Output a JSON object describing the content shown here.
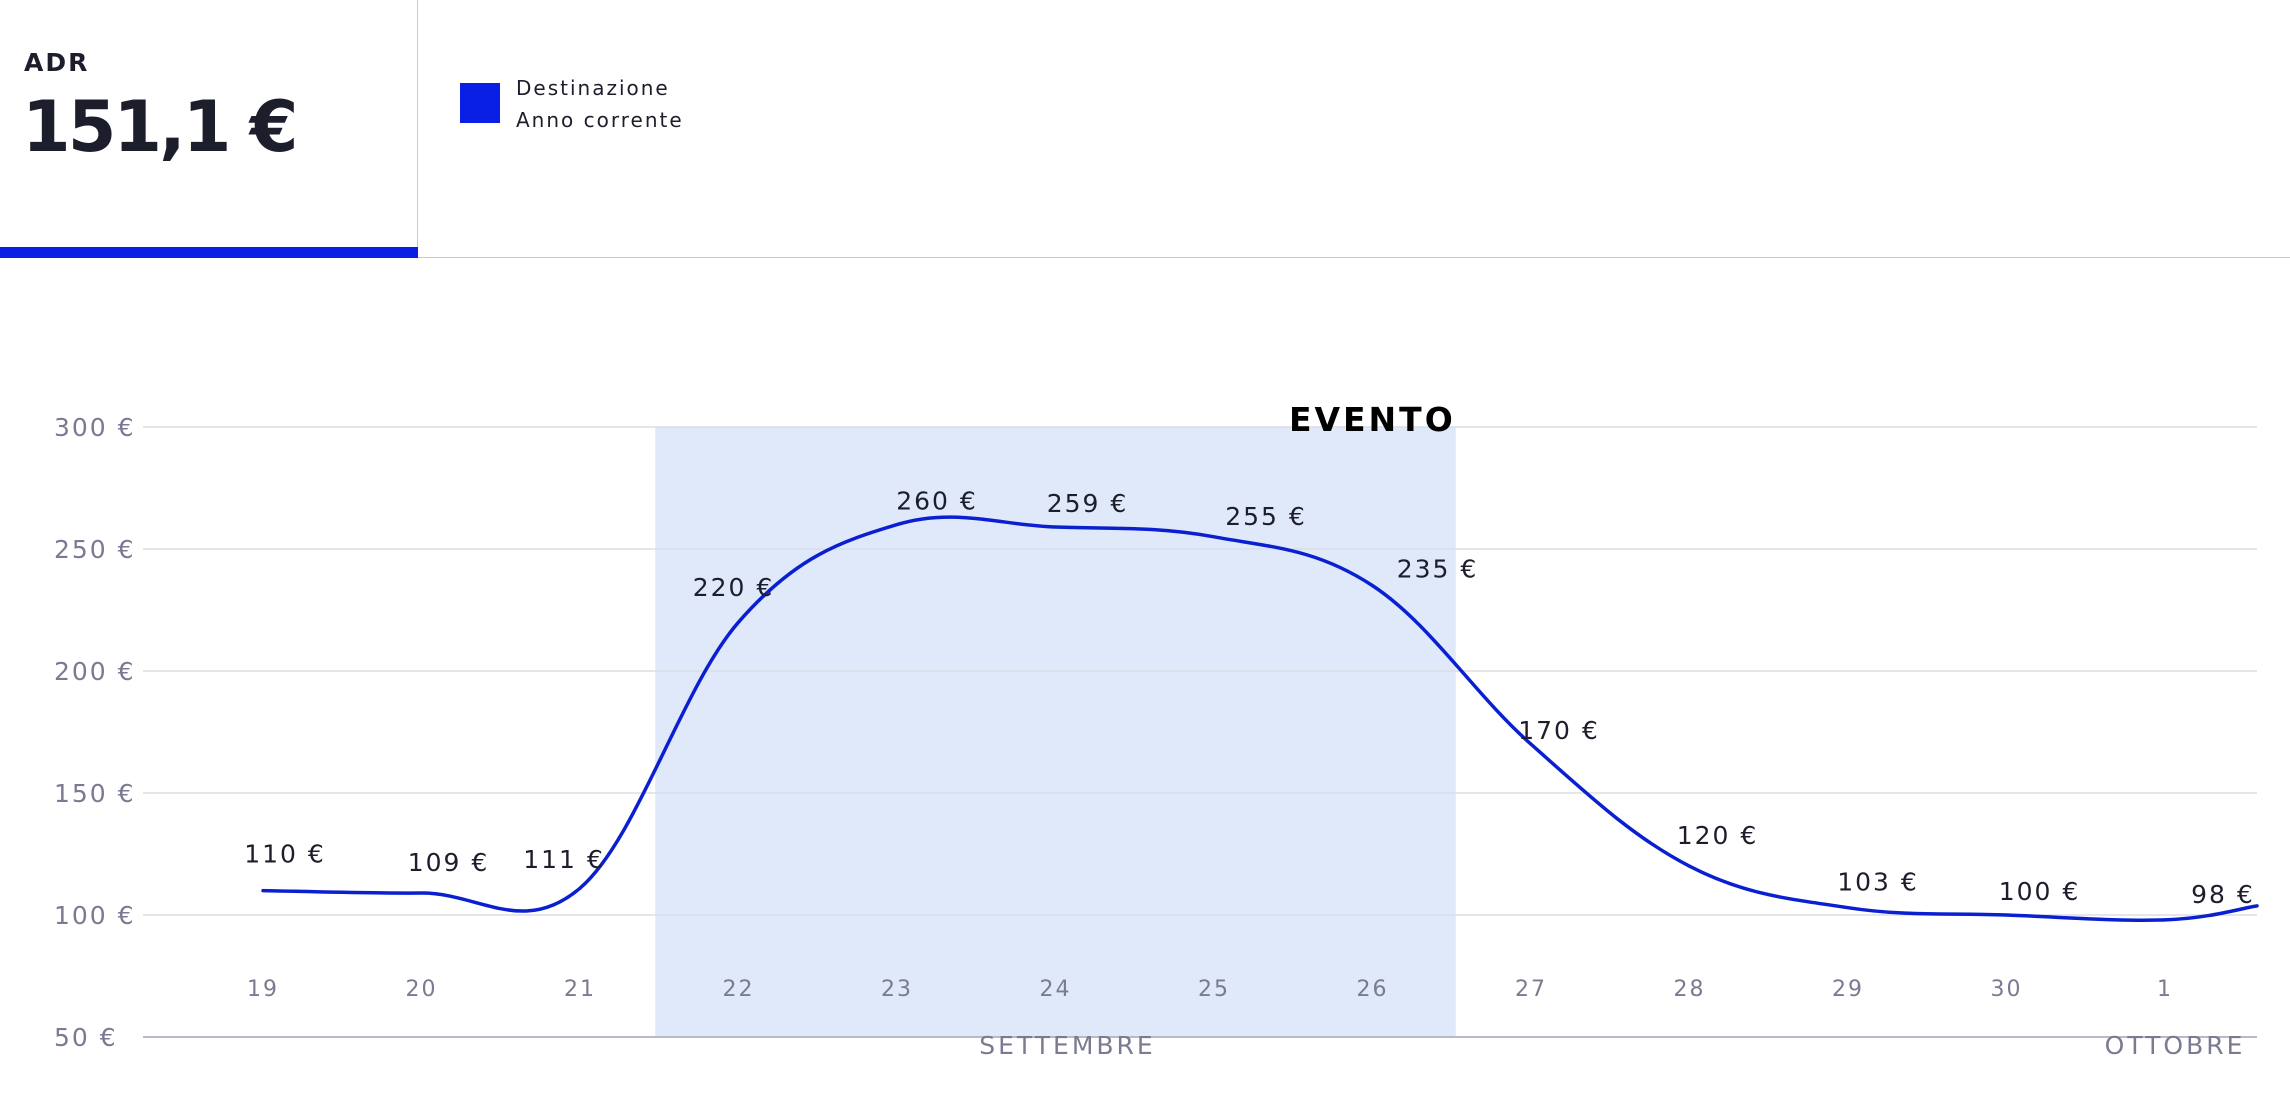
{
  "kpi": {
    "label": "ADR",
    "value": "151,1 €"
  },
  "legend": {
    "line1": "Destinazione",
    "line2": "Anno corrente"
  },
  "colors": {
    "accent": "#0a1fe6",
    "series": "#0a20d0",
    "event_band": "#dfe9fa",
    "grid": "#dcdde5",
    "axis_text": "#7a7b92",
    "label_text": "#1d1e2c"
  },
  "chart_data": {
    "type": "line",
    "categories": [
      "19",
      "20",
      "21",
      "22",
      "23",
      "24",
      "25",
      "26",
      "27",
      "28",
      "29",
      "30",
      "1"
    ],
    "month_labels": [
      {
        "text": "SETTEMBRE",
        "under": "24"
      },
      {
        "text": "OTTOBRE",
        "under": "1"
      }
    ],
    "series": [
      {
        "name": "Destinazione Anno corrente",
        "values": [
          110,
          109,
          111,
          220,
          260,
          259,
          255,
          235,
          170,
          120,
          103,
          100,
          98
        ]
      }
    ],
    "data_labels": [
      "110 €",
      "109 €",
      "111 €",
      "220 €",
      "260 €",
      "259 €",
      "255 €",
      "235 €",
      "170 €",
      "120 €",
      "103 €",
      "100 €",
      "98 €"
    ],
    "y_ticks": [
      300,
      250,
      200,
      150,
      100,
      50
    ],
    "y_tick_labels": [
      "300 €",
      "250 €",
      "200 €",
      "150 €",
      "100 €",
      "50 €"
    ],
    "ylim": [
      50,
      300
    ],
    "grid": true,
    "event": {
      "label": "EVENTO",
      "from": "22",
      "to": "26"
    }
  }
}
